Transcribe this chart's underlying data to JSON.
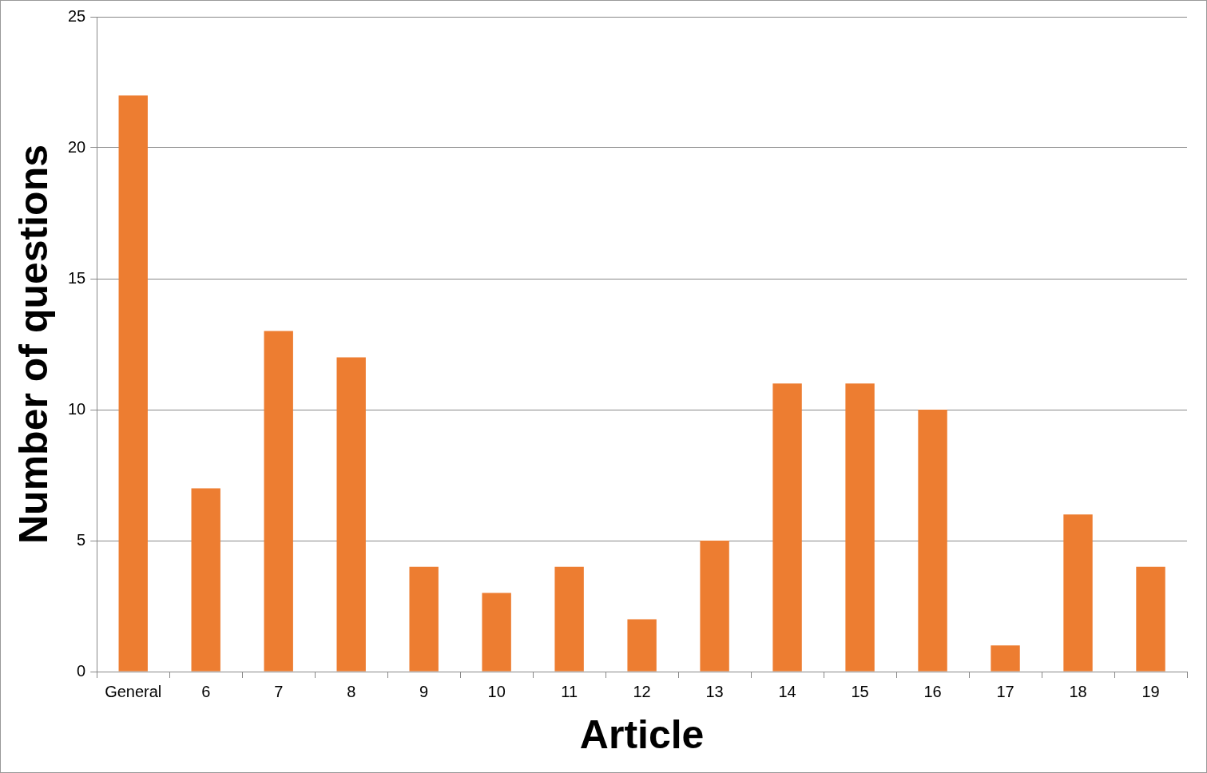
{
  "chart_data": {
    "type": "bar",
    "xlabel": "Article",
    "ylabel": "Number of questions",
    "categories": [
      "General",
      "6",
      "7",
      "8",
      "9",
      "10",
      "11",
      "12",
      "13",
      "14",
      "15",
      "16",
      "17",
      "18",
      "19"
    ],
    "values": [
      22,
      7,
      13,
      12,
      4,
      3,
      4,
      2,
      5,
      11,
      11,
      10,
      1,
      6,
      4
    ],
    "color": "#ed7d31",
    "ylim": [
      0,
      25
    ],
    "yticks": [
      0,
      5,
      10,
      15,
      20,
      25
    ],
    "grid": "y",
    "legend": false
  }
}
